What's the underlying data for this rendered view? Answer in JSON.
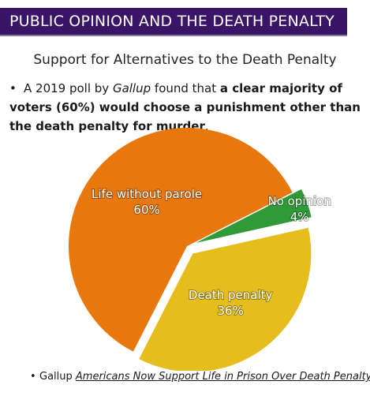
{
  "header": {
    "title": "PUBLIC OPINION AND THE DEATH PENALTY"
  },
  "subtitle": "Support for Alternatives to the Death Penalty",
  "note": {
    "bullet": "•",
    "part1": "A 2019 poll by ",
    "source_name": "Gallup",
    "part2": " found that ",
    "highlight": "a clear majority of voters (60%) would choose a punishment other than the death penalty for murder",
    "part3": "."
  },
  "chart_data": {
    "type": "pie",
    "slices": [
      {
        "label": "Life without parole",
        "value": 60,
        "value_label": "60%",
        "color": "#e8770e",
        "exploded": false
      },
      {
        "label": "No opinion",
        "value": 4,
        "value_label": "4%",
        "color": "#2f9a36",
        "exploded": true
      },
      {
        "label": "Death penalty",
        "value": 36,
        "value_label": "36%",
        "color": "#e5bd1c",
        "exploded": true
      }
    ]
  },
  "source": {
    "bullet": "•",
    "prefix": "Gallup ",
    "link_text": "Americans Now Support Life in Prison Over Death Penalty"
  }
}
